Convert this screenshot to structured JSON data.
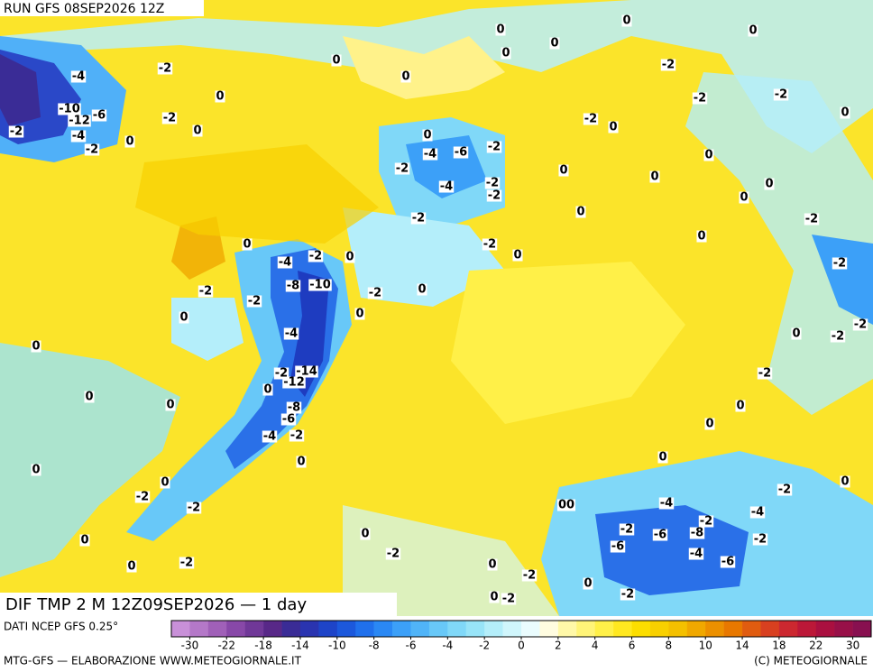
{
  "header": {
    "run": "RUN GFS 08SEP2026 12Z"
  },
  "map": {
    "title": "DIF TMP 2 M 12Z09SEP2026 — 1 day",
    "contour_labels": [
      -4,
      -2,
      0,
      -10,
      -12,
      -6,
      -2,
      0,
      -4,
      -2,
      0,
      -2,
      0,
      0,
      0,
      0,
      0,
      0,
      -2,
      0,
      -2,
      -2,
      0,
      -2,
      0,
      0,
      -4,
      -6,
      -2,
      -2,
      0,
      0,
      0,
      -4,
      -2,
      -2,
      0,
      -2,
      0,
      0,
      -2,
      0,
      -4,
      -2,
      0,
      -2,
      0,
      0,
      -2,
      -2,
      -10,
      -8,
      -2,
      0,
      0,
      -4,
      0,
      -2,
      -2,
      0,
      -2,
      0,
      -2,
      -14,
      -12,
      0,
      0,
      0,
      -2,
      0,
      -8,
      -6,
      -4,
      -2,
      0,
      0,
      0,
      0,
      -2,
      0,
      0,
      -2,
      -2,
      "00",
      -4,
      -4,
      0,
      0,
      -2,
      -6,
      -6,
      -8,
      -2,
      -2,
      -4,
      -6,
      -2,
      0,
      -2,
      0,
      -2,
      0,
      -2,
      0,
      -2
    ]
  },
  "legend": {
    "source": "DATI NCEP GFS 0.25°",
    "colors": [
      "#c890d8",
      "#b478c8",
      "#a060b8",
      "#8848a8",
      "#703898",
      "#582888",
      "#3a2c96",
      "#2a34b0",
      "#1e44c8",
      "#1c58dc",
      "#2070ec",
      "#2a88f4",
      "#3ca0f8",
      "#50b4f8",
      "#68c8f8",
      "#80d8f8",
      "#98e4f8",
      "#b4eefa",
      "#d0f6fc",
      "#eafcfe",
      "#fffce0",
      "#fff8a8",
      "#fff478",
      "#fff048",
      "#ffe820",
      "#fcde00",
      "#f8d000",
      "#f4c000",
      "#f0a800",
      "#ec9000",
      "#e87800",
      "#e05c10",
      "#d84020",
      "#cc2830",
      "#bc1838",
      "#aa1040",
      "#981048",
      "#881050"
    ],
    "ticks": [
      -30,
      -22,
      -18,
      -14,
      -10,
      -8,
      -6,
      -4,
      -2,
      0,
      2,
      4,
      6,
      8,
      10,
      14,
      18,
      22,
      30
    ]
  },
  "footer": {
    "left": "MTG-GFS — ELABORAZIONE WWW.METEOGIORNALE.IT",
    "right": "(C) METEOGIORNALE"
  }
}
